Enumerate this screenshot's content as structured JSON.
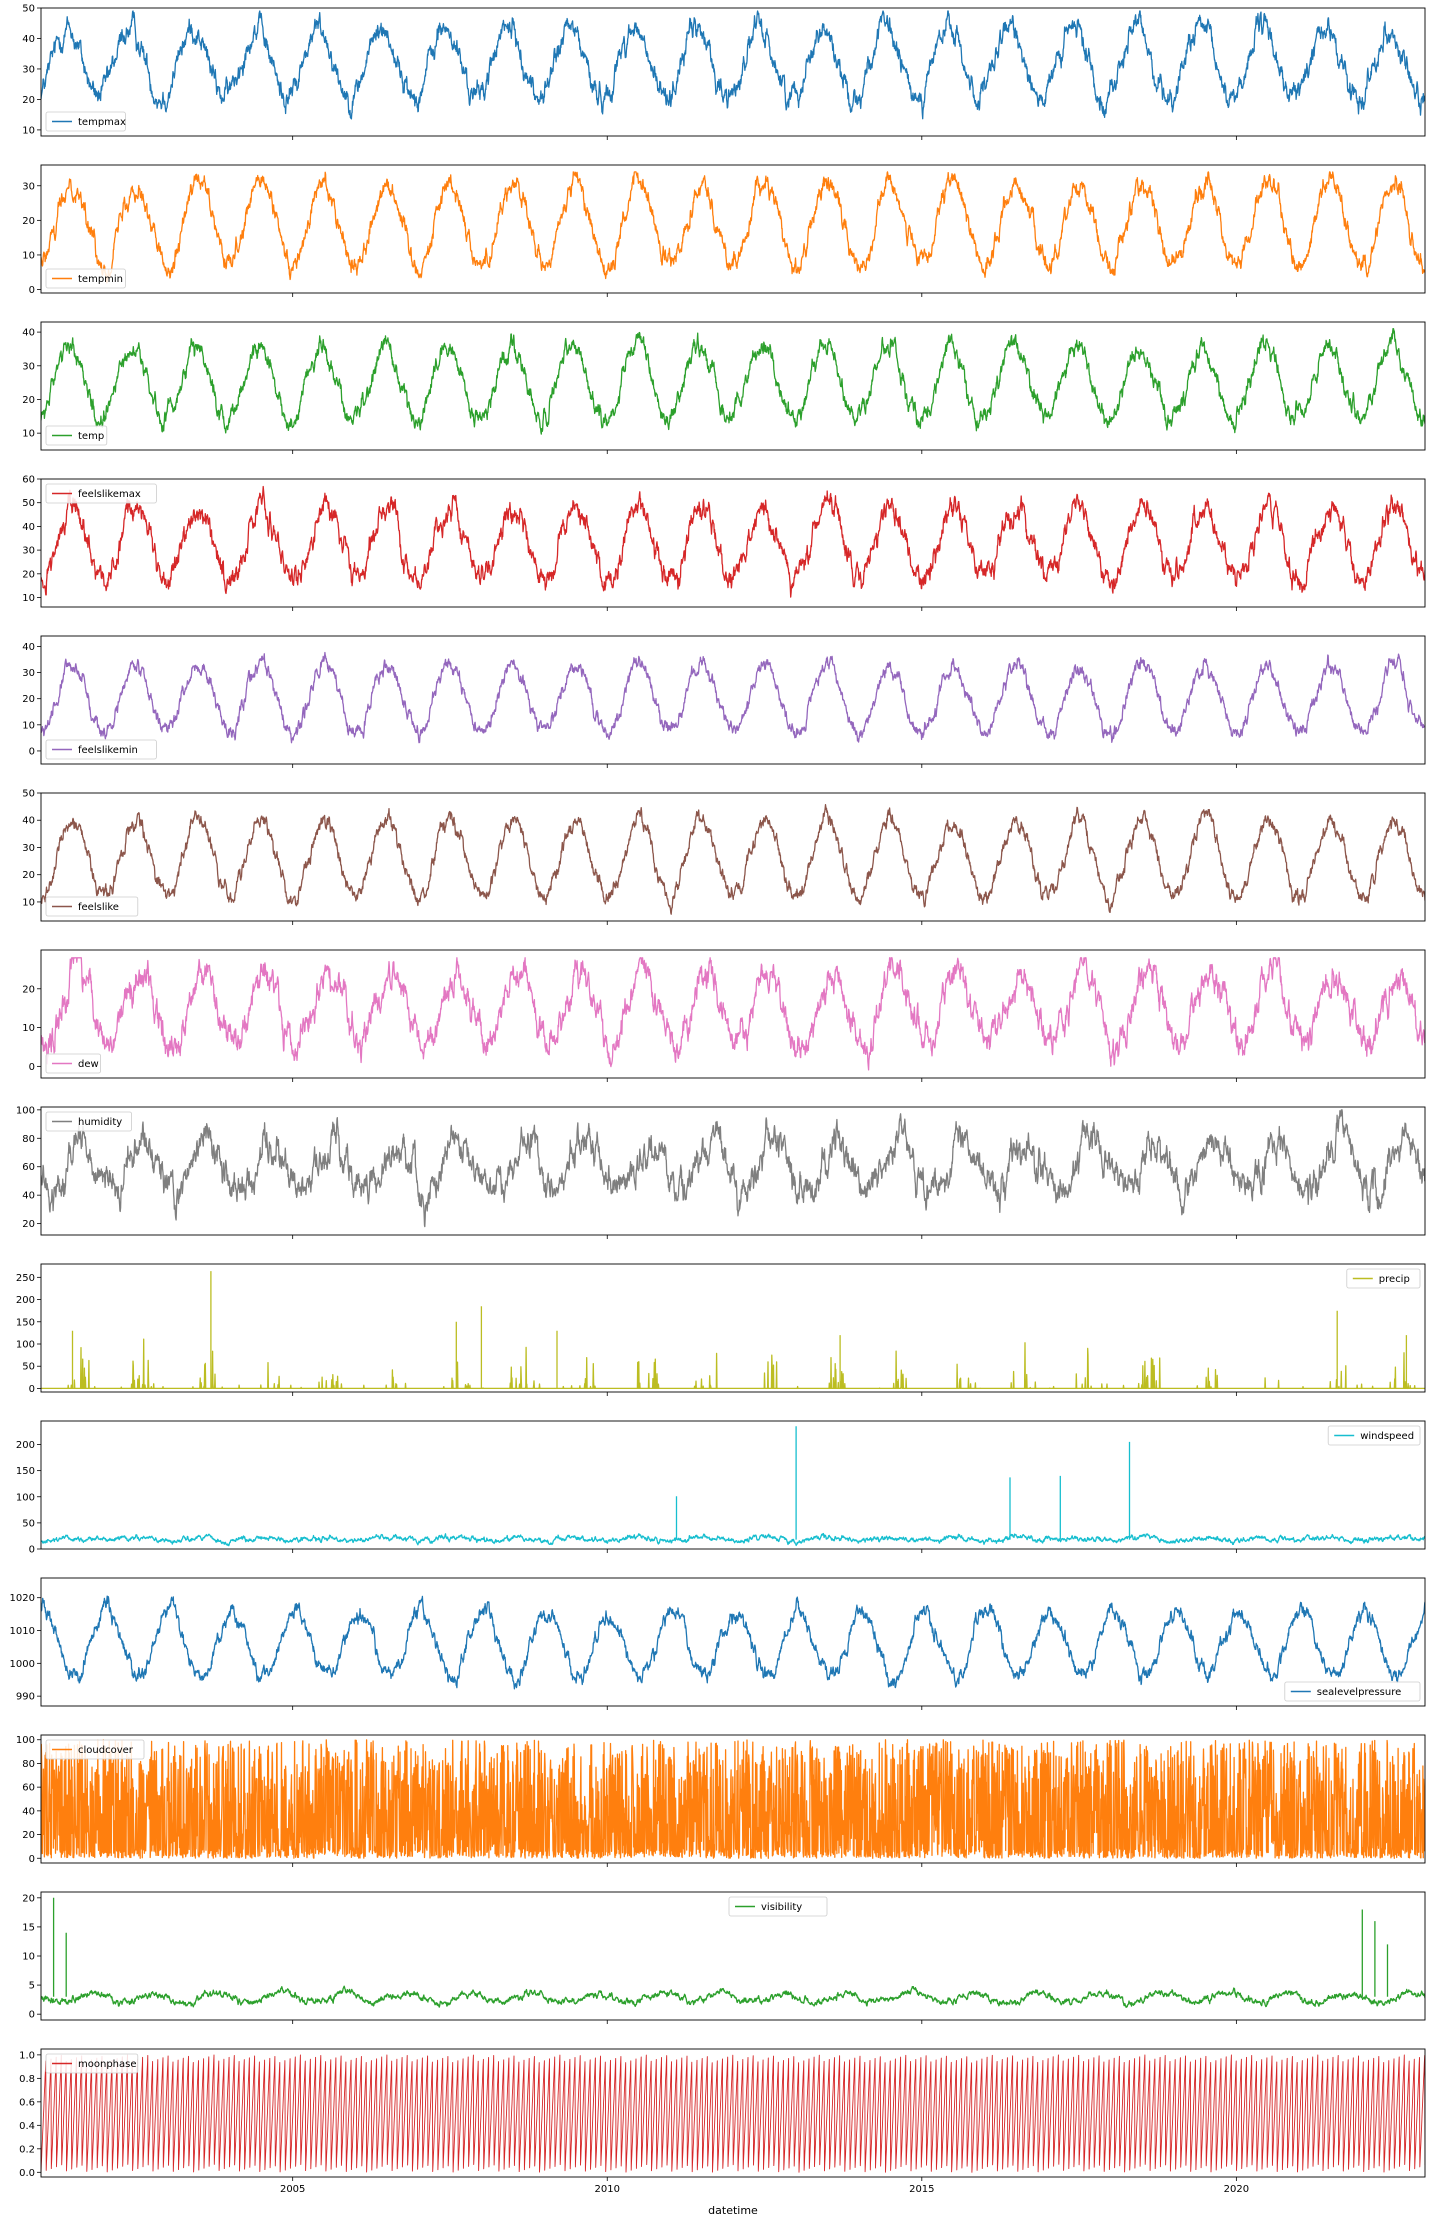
{
  "chart_data": {
    "type": "line",
    "xlabel": "datetime",
    "x_range": [
      "2001-01-01",
      "2022-12-31"
    ],
    "x_ticks": [
      "2005",
      "2010",
      "2015",
      "2020"
    ],
    "panels": [
      {
        "series": "tempmax",
        "color": "#1f77b4",
        "ylim": [
          8,
          50
        ],
        "yticks": [
          10,
          20,
          30,
          40,
          50
        ],
        "legend": "lower-left",
        "annual": {
          "mean": 32,
          "amp": 11,
          "noise": 4,
          "peak_month": 5.0
        },
        "range": [
          10,
          49
        ]
      },
      {
        "series": "tempmin",
        "color": "#ff7f0e",
        "ylim": [
          -1,
          36
        ],
        "yticks": [
          0,
          10,
          20,
          30
        ],
        "legend": "lower-left",
        "annual": {
          "mean": 19,
          "amp": 12,
          "noise": 3,
          "peak_month": 6.0
        },
        "range": [
          0,
          34
        ]
      },
      {
        "series": "temp",
        "color": "#2ca02c",
        "ylim": [
          5,
          43
        ],
        "yticks": [
          10,
          20,
          30,
          40
        ],
        "legend": "lower-left",
        "annual": {
          "mean": 25,
          "amp": 11,
          "noise": 3,
          "peak_month": 5.5
        },
        "range": [
          6,
          41
        ]
      },
      {
        "series": "feelslikemax",
        "color": "#d62728",
        "ylim": [
          6,
          60
        ],
        "yticks": [
          10,
          20,
          30,
          40,
          50,
          60
        ],
        "legend": "upper-left",
        "annual": {
          "mean": 33,
          "amp": 15,
          "noise": 5,
          "peak_month": 6.0
        },
        "range": [
          9,
          58
        ]
      },
      {
        "series": "feelslikemin",
        "color": "#9467bd",
        "ylim": [
          -5,
          44
        ],
        "yticks": [
          0,
          10,
          20,
          30,
          40
        ],
        "legend": "lower-left",
        "annual": {
          "mean": 20,
          "amp": 13,
          "noise": 3,
          "peak_month": 6.0
        },
        "range": [
          -4,
          41
        ]
      },
      {
        "series": "feelslike",
        "color": "#8c564b",
        "ylim": [
          3,
          50
        ],
        "yticks": [
          10,
          20,
          30,
          40,
          50
        ],
        "legend": "lower-left",
        "annual": {
          "mean": 26,
          "amp": 14,
          "noise": 3,
          "peak_month": 6.0
        },
        "range": [
          5,
          47
        ]
      },
      {
        "series": "dew",
        "color": "#e377c2",
        "ylim": [
          -3,
          30
        ],
        "yticks": [
          0,
          10,
          20
        ],
        "legend": "lower-left",
        "annual": {
          "mean": 15,
          "amp": 9,
          "noise": 4,
          "peak_month": 7.0
        },
        "range": [
          -2,
          28
        ]
      },
      {
        "series": "humidity",
        "color": "#7f7f7f",
        "ylim": [
          12,
          102
        ],
        "yticks": [
          20,
          40,
          60,
          80,
          100
        ],
        "legend": "upper-left",
        "annual": {
          "mean": 60,
          "amp": 18,
          "noise": 12,
          "peak_month": 8.0
        },
        "range": [
          15,
          100
        ]
      },
      {
        "series": "precip",
        "color": "#bcbd22",
        "ylim": [
          -8,
          280
        ],
        "yticks": [
          0,
          50,
          100,
          150,
          200,
          250
        ],
        "legend": "upper-right",
        "spikes": {
          "base": 1,
          "max": 264,
          "season_month": 7.5
        },
        "range": [
          0,
          264
        ]
      },
      {
        "series": "windspeed",
        "color": "#17becf",
        "ylim": [
          0,
          245
        ],
        "yticks": [
          0,
          50,
          100,
          150,
          200
        ],
        "legend": "upper-right",
        "annual": {
          "mean": 19,
          "amp": 3,
          "noise": 5,
          "peak_month": 6.0
        },
        "range": [
          5,
          235
        ]
      },
      {
        "series": "sealevelpressure",
        "color": "#1f77b4",
        "ylim": [
          987,
          1026
        ],
        "yticks": [
          990,
          1000,
          1010,
          1020
        ],
        "legend": "lower-right",
        "annual": {
          "mean": 1006,
          "amp": 10,
          "noise": 2.5,
          "peak_month": 0.5
        },
        "range": [
          988,
          1025
        ]
      },
      {
        "series": "cloudcover",
        "color": "#ff7f0e",
        "ylim": [
          -4,
          104
        ],
        "yticks": [
          0,
          20,
          40,
          60,
          80,
          100
        ],
        "legend": "upper-left",
        "random": {
          "low": 0,
          "high": 100
        },
        "range": [
          0,
          100
        ]
      },
      {
        "series": "visibility",
        "color": "#2ca02c",
        "ylim": [
          -1,
          21
        ],
        "yticks": [
          0,
          5,
          10,
          15,
          20
        ],
        "legend": "upper-center",
        "annual": {
          "mean": 2.8,
          "amp": 0.8,
          "noise": 0.6,
          "peak_month": 10.0
        },
        "range": [
          0.5,
          20
        ]
      },
      {
        "series": "moonphase",
        "color": "#d62728",
        "ylim": [
          -0.04,
          1.05
        ],
        "yticks": [
          "0.0",
          "0.2",
          "0.4",
          "0.6",
          "0.8",
          "1.0"
        ],
        "legend": "upper-left",
        "periodic": {
          "period_days": 29.53,
          "low": 0,
          "high": 1
        },
        "range": [
          0,
          1
        ]
      }
    ]
  }
}
